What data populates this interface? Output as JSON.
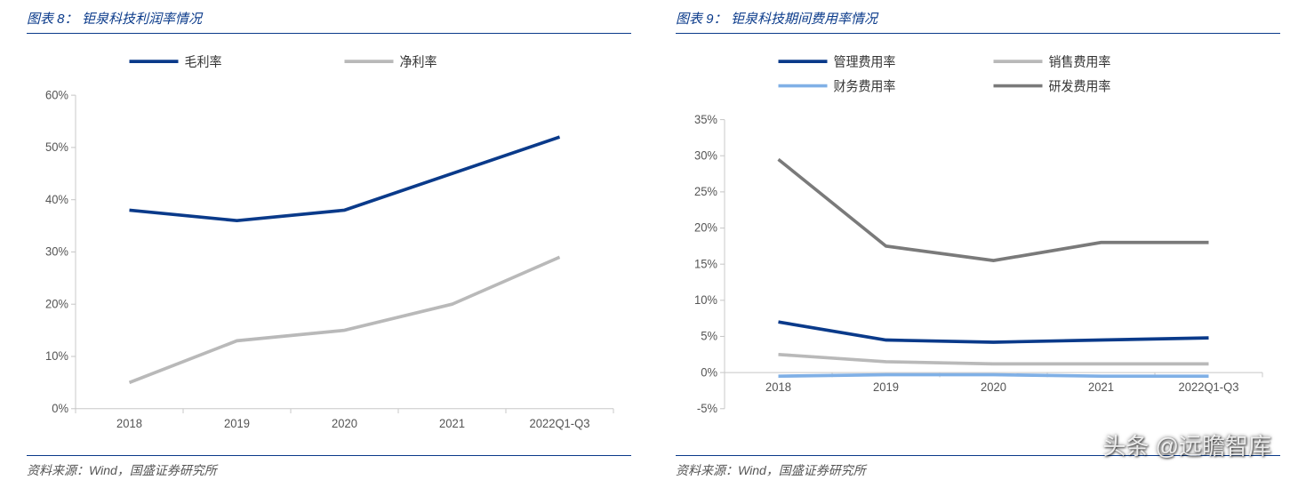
{
  "left": {
    "title_label": "图表 8：",
    "title_text": "钜泉科技利润率情况",
    "source": "资料来源：Wind，国盛证券研究所",
    "chart": {
      "type": "line",
      "categories": [
        "2018",
        "2019",
        "2020",
        "2021",
        "2022Q1-Q3"
      ],
      "series": [
        {
          "name": "毛利率",
          "color": "#0a3a8a",
          "values": [
            38,
            36,
            38,
            45,
            52
          ]
        },
        {
          "name": "净利率",
          "color": "#b9b9b9",
          "values": [
            5,
            13,
            15,
            20,
            29
          ]
        }
      ],
      "ylim": [
        0,
        60
      ],
      "ytick_step": 10,
      "y_suffix": "%",
      "line_width": 3.5,
      "background": "#ffffff",
      "axis_color": "#c8c8c8",
      "text_color": "#555555",
      "label_fontsize": 13,
      "legend_fontsize": 14
    }
  },
  "right": {
    "title_label": "图表 9：",
    "title_text": "钜泉科技期间费用率情况",
    "source": "资料来源：Wind，国盛证券研究所",
    "chart": {
      "type": "line",
      "categories": [
        "2018",
        "2019",
        "2020",
        "2021",
        "2022Q1-Q3"
      ],
      "series": [
        {
          "name": "管理费用率",
          "color": "#0a3a8a",
          "values": [
            7.0,
            4.5,
            4.2,
            4.5,
            4.8
          ]
        },
        {
          "name": "销售费用率",
          "color": "#b9b9b9",
          "values": [
            2.5,
            1.5,
            1.2,
            1.2,
            1.2
          ]
        },
        {
          "name": "财务费用率",
          "color": "#80b0e6",
          "values": [
            -0.5,
            -0.3,
            -0.3,
            -0.5,
            -0.5
          ]
        },
        {
          "name": "研发费用率",
          "color": "#7a7a7a",
          "values": [
            29.5,
            17.5,
            15.5,
            18.0,
            18.0
          ]
        }
      ],
      "ylim": [
        -5,
        35
      ],
      "ytick_step": 5,
      "y_suffix": "%",
      "line_width": 3.5,
      "background": "#ffffff",
      "axis_color": "#c8c8c8",
      "text_color": "#555555",
      "label_fontsize": 13,
      "legend_fontsize": 14
    }
  },
  "watermark": "头条 @远瞻智库"
}
